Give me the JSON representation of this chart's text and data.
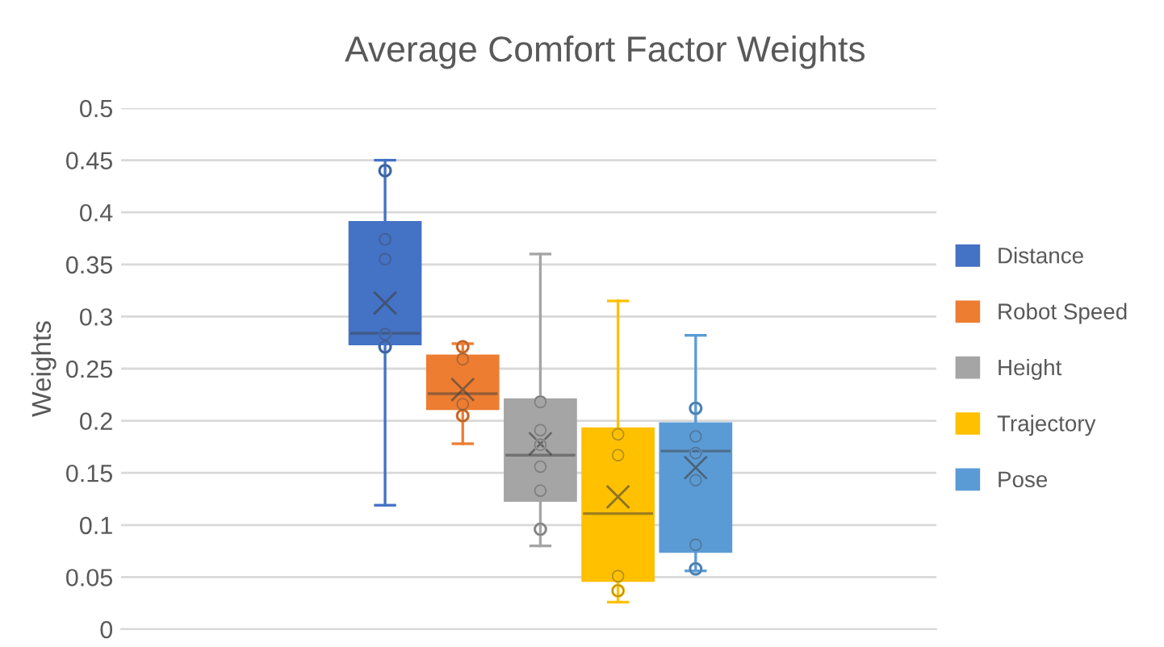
{
  "chart_data": {
    "type": "box",
    "title": "Average Comfort Factor Weights",
    "ylabel": "Weights",
    "categories": [
      null
    ],
    "series": [
      {
        "name": "Distance",
        "color": "#4472c4",
        "boxes": [
          {
            "low": 0.119,
            "q1": 0.274,
            "median": 0.284,
            "q3": 0.39,
            "high": 0.45,
            "mean": 0.313,
            "outliers": [
              0.44,
              0.374,
              0.355,
              0.283,
              0.271
            ]
          }
        ]
      },
      {
        "name": "Robot Speed",
        "color": "#ed7d31",
        "boxes": [
          {
            "low": 0.178,
            "q1": 0.212,
            "median": 0.226,
            "q3": 0.262,
            "high": 0.274,
            "mean": 0.23,
            "outliers": [
              0.271,
              0.259,
              0.216,
              0.205
            ]
          }
        ]
      },
      {
        "name": "Height",
        "color": "#a5a5a5",
        "boxes": [
          {
            "low": 0.08,
            "q1": 0.124,
            "median": 0.167,
            "q3": 0.22,
            "high": 0.36,
            "mean": 0.178,
            "outliers": [
              0.218,
              0.191,
              0.177,
              0.156,
              0.133,
              0.096
            ]
          }
        ]
      },
      {
        "name": "Trajectory",
        "color": "#ffc000",
        "boxes": [
          {
            "low": 0.026,
            "q1": 0.047,
            "median": 0.111,
            "q3": 0.192,
            "high": 0.315,
            "mean": 0.127,
            "outliers": [
              0.187,
              0.167,
              0.051,
              0.037
            ]
          }
        ]
      },
      {
        "name": "Pose",
        "color": "#5b9bd5",
        "boxes": [
          {
            "low": 0.056,
            "q1": 0.075,
            "median": 0.171,
            "q3": 0.197,
            "high": 0.282,
            "mean": 0.155,
            "outliers": [
              0.212,
              0.185,
              0.169,
              0.143,
              0.081,
              0.058
            ]
          }
        ]
      }
    ],
    "ylim": [
      0,
      0.5
    ],
    "yticks": [
      0,
      0.05,
      0.1,
      0.15,
      0.2,
      0.25,
      0.3,
      0.35,
      0.4,
      0.45,
      0.5
    ],
    "grid": "y",
    "legend": "right"
  }
}
